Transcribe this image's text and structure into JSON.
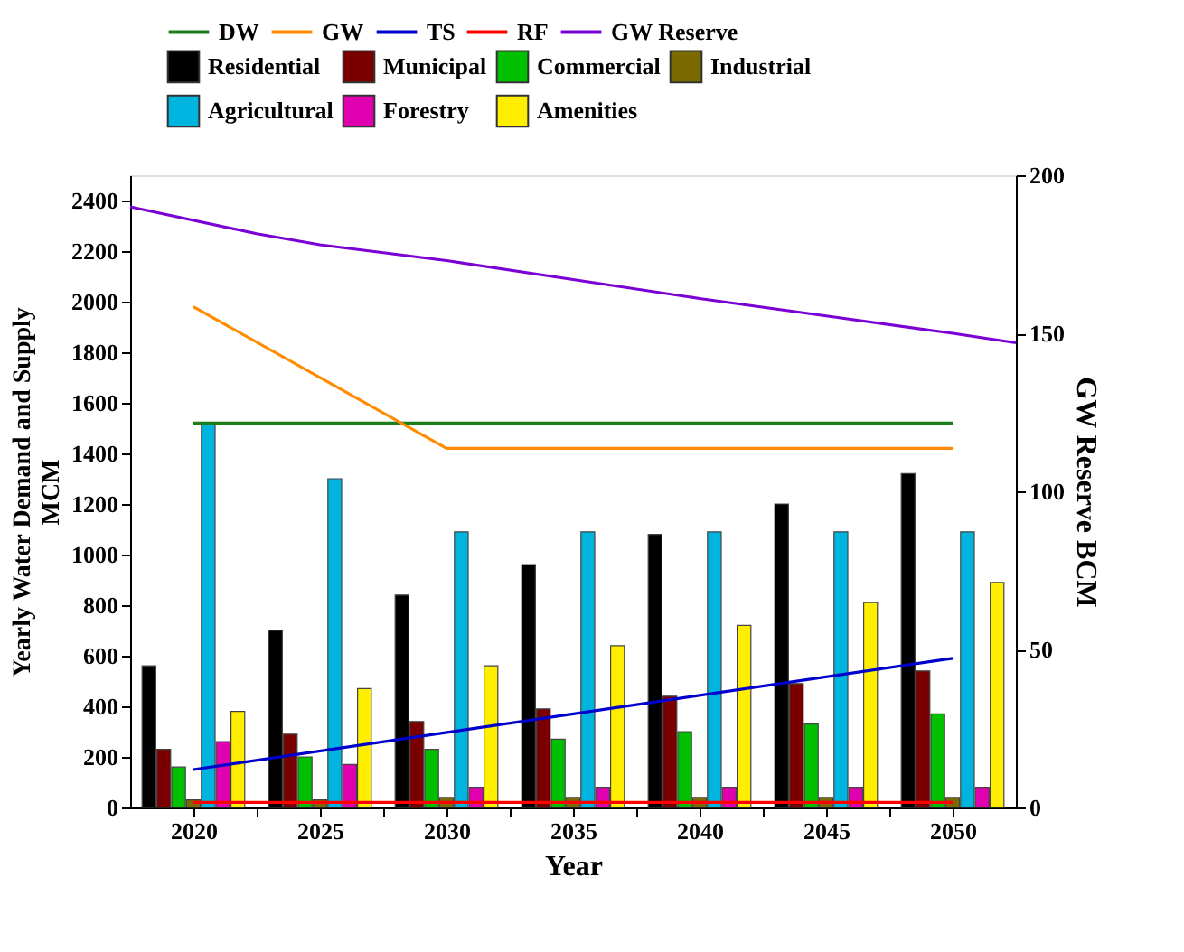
{
  "chart_data": {
    "type": "bar",
    "xlabel": "Year",
    "ylabel": "Yearly Water Demand and Supply\nMCM",
    "y2label": "GW Reserve BCM",
    "legend": "top",
    "grid": false,
    "x": [
      2020,
      2025,
      2030,
      2035,
      2040,
      2045,
      2050
    ],
    "xlim": [
      2017.5,
      2052.5
    ],
    "xticks": [
      2020,
      {
        "value": 2022.5,
        "label": null
      },
      2025,
      {
        "value": 2027.5,
        "label": null
      },
      2030,
      {
        "value": 2032.5,
        "label": null
      },
      2035,
      {
        "value": 2037.5,
        "label": null
      },
      2040,
      {
        "value": 2042.5,
        "label": null
      },
      2045,
      {
        "value": 2047.5,
        "label": null
      },
      2050
    ],
    "ylim": [
      0,
      2500
    ],
    "yticks": [
      0,
      200,
      400,
      600,
      800,
      1000,
      1200,
      1400,
      1600,
      1800,
      2000,
      2200,
      2400
    ],
    "y2lim": [
      0,
      200
    ],
    "y2ticks": [
      0,
      50,
      100,
      150,
      200
    ],
    "series": [
      {
        "name": "DW",
        "type": "line",
        "color": "#1a7f1a",
        "x": [
          2020,
          2050
        ],
        "values": [
          1520,
          1520
        ]
      },
      {
        "name": "GW",
        "type": "line",
        "color": "#ff8c00",
        "x": [
          2020,
          2030,
          2050
        ],
        "values": [
          1980,
          1420,
          1420
        ]
      },
      {
        "name": "TS",
        "type": "line",
        "color": "#0000cc",
        "x": [
          2020,
          2050
        ],
        "values": [
          150,
          590
        ]
      },
      {
        "name": "RF",
        "type": "line",
        "color": "#ff0000",
        "x": [
          2020,
          2050
        ],
        "values": [
          20,
          20
        ]
      },
      {
        "name": "GW Reserve",
        "type": "line",
        "axis": "y2",
        "color": "#7b00d4",
        "x": [
          2017.5,
          2022.5,
          2025,
          2030,
          2035,
          2040,
          2045,
          2050,
          2052.5
        ],
        "values": [
          190,
          181.5,
          178,
          173,
          167,
          161,
          155.5,
          150,
          147
        ]
      },
      {
        "name": "Residential",
        "color": "#000000",
        "values": [
          560,
          700,
          840,
          960,
          1080,
          1200,
          1320
        ]
      },
      {
        "name": "Municipal",
        "color": "#7a0000",
        "values": [
          230,
          290,
          340,
          390,
          440,
          490,
          540
        ]
      },
      {
        "name": "Commercial",
        "color": "#00c000",
        "values": [
          160,
          200,
          230,
          270,
          300,
          330,
          370
        ]
      },
      {
        "name": "Industrial",
        "color": "#7a6a00",
        "values": [
          30,
          30,
          40,
          40,
          40,
          40,
          40
        ]
      },
      {
        "name": "Agricultural",
        "color": "#00b4e0",
        "values": [
          1520,
          1300,
          1090,
          1090,
          1090,
          1090,
          1090
        ]
      },
      {
        "name": "Forestry",
        "color": "#e000b0",
        "values": [
          260,
          170,
          80,
          80,
          80,
          80,
          80
        ]
      },
      {
        "name": "Amenities",
        "color": "#ffee00",
        "values": [
          380,
          470,
          560,
          640,
          720,
          810,
          890
        ]
      }
    ]
  }
}
